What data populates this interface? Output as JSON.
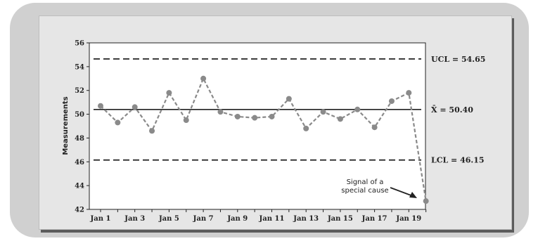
{
  "chart_data": {
    "type": "line",
    "xlabel": "",
    "ylabel": "Measurements",
    "ylim": [
      42,
      56
    ],
    "yticks": [
      42,
      44,
      46,
      48,
      50,
      52,
      54,
      56
    ],
    "x_tick_labels": [
      "Jan 1",
      "Jan 3",
      "Jan 5",
      "Jan 7",
      "Jan 9",
      "Jan 11",
      "Jan 13",
      "Jan 15",
      "Jan 17",
      "Jan 19"
    ],
    "x": [
      "Jan 1",
      "Jan 2",
      "Jan 3",
      "Jan 4",
      "Jan 5",
      "Jan 6",
      "Jan 7",
      "Jan 8",
      "Jan 9",
      "Jan 10",
      "Jan 11",
      "Jan 12",
      "Jan 13",
      "Jan 14",
      "Jan 15",
      "Jan 16",
      "Jan 17",
      "Jan 18",
      "Jan 19",
      "Jan 20"
    ],
    "series": [
      {
        "name": "",
        "values": [
          50.7,
          49.3,
          50.6,
          48.6,
          51.8,
          49.5,
          53.0,
          50.2,
          49.8,
          49.7,
          49.8,
          51.3,
          48.8,
          50.2,
          49.6,
          50.4,
          48.9,
          51.1,
          51.8,
          42.7
        ]
      }
    ],
    "reference_lines": [
      {
        "label": "UCL = 54.65",
        "value": 54.65,
        "style": "dashed"
      },
      {
        "label": "X̄ = 50.40",
        "value": 50.4,
        "style": "solid"
      },
      {
        "label": "LCL = 46.15",
        "value": 46.15,
        "style": "dashed"
      }
    ],
    "annotation": {
      "line1": "Signal of a",
      "line2": "special cause"
    },
    "colors": {
      "points": "#8a8a8a",
      "series_line": "#8a8a8a",
      "ref_lines": "#222222",
      "plot_bg": "#ffffff"
    }
  }
}
